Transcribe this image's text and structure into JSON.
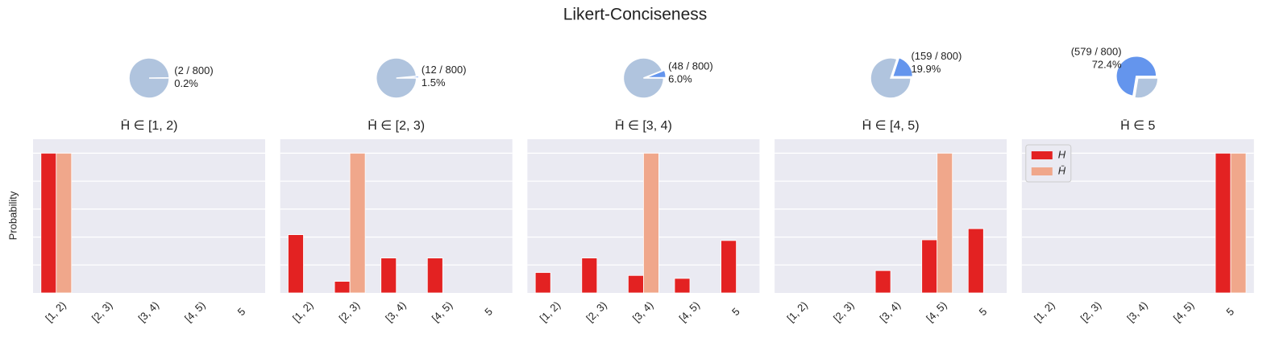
{
  "title": "Likert-Conciseness",
  "chart_data": [
    {
      "type": "pie",
      "label": "(2 / 800)",
      "values": [
        0.2,
        99.8
      ],
      "value_labels": [
        "0.2%",
        null
      ],
      "colors": [
        "#6495ed",
        "#b0c4de"
      ]
    },
    {
      "type": "bar",
      "title": "H̄ ∈ [1, 2)",
      "ylabel": "Probability",
      "categories": [
        "[1, 2)",
        "[2, 3)",
        "[3, 4)",
        "[4, 5)",
        "5"
      ],
      "series": [
        {
          "color": "#e32222",
          "values": [
            1.0,
            0,
            0,
            0,
            0
          ]
        },
        {
          "color": "#f0a78b",
          "values": [
            1.0,
            0,
            0,
            0,
            0
          ]
        }
      ],
      "ylim": [
        0,
        1.1
      ],
      "yticks": [
        0.2,
        0.4,
        0.6,
        0.8,
        1.0
      ],
      "grid": true
    },
    {
      "type": "pie",
      "label": "(12 / 800)",
      "values": [
        1.5,
        98.5
      ],
      "value_labels": [
        "1.5%",
        null
      ],
      "colors": [
        "#6495ed",
        "#b0c4de"
      ]
    },
    {
      "type": "bar",
      "title": "H̄ ∈ [2, 3)",
      "categories": [
        "[1, 2)",
        "[2, 3)",
        "[3, 4)",
        "[4, 5)",
        "5"
      ],
      "series": [
        {
          "color": "#e32222",
          "values": [
            0.417,
            0.083,
            0.25,
            0.25,
            0
          ]
        },
        {
          "color": "#f0a78b",
          "values": [
            0,
            1.0,
            0,
            0,
            0
          ]
        }
      ],
      "ylim": [
        0,
        1.1
      ],
      "yticks": [
        0.2,
        0.4,
        0.6,
        0.8,
        1.0
      ],
      "grid": true
    },
    {
      "type": "pie",
      "label": "(48 / 800)",
      "values": [
        6.0,
        94.0
      ],
      "value_labels": [
        "6.0%",
        null
      ],
      "colors": [
        "#6495ed",
        "#b0c4de"
      ]
    },
    {
      "type": "bar",
      "title": "H̄ ∈ [3, 4)",
      "categories": [
        "[1, 2)",
        "[2, 3)",
        "[3, 4)",
        "[4, 5)",
        "5"
      ],
      "series": [
        {
          "color": "#e32222",
          "values": [
            0.146,
            0.25,
            0.125,
            0.104,
            0.375
          ]
        },
        {
          "color": "#f0a78b",
          "values": [
            0,
            0,
            1.0,
            0,
            0
          ]
        }
      ],
      "ylim": [
        0,
        1.1
      ],
      "yticks": [
        0.2,
        0.4,
        0.6,
        0.8,
        1.0
      ],
      "grid": true
    },
    {
      "type": "pie",
      "label": "(159 / 800)",
      "values": [
        19.9,
        80.1
      ],
      "value_labels": [
        "19.9%",
        null
      ],
      "colors": [
        "#6495ed",
        "#b0c4de"
      ]
    },
    {
      "type": "bar",
      "title": "H̄ ∈ [4, 5)",
      "categories": [
        "[1, 2)",
        "[2, 3)",
        "[3, 4)",
        "[4, 5)",
        "5"
      ],
      "series": [
        {
          "color": "#e32222",
          "values": [
            0,
            0,
            0.16,
            0.38,
            0.46
          ]
        },
        {
          "color": "#f0a78b",
          "values": [
            0,
            0,
            0,
            1.0,
            0
          ]
        }
      ],
      "ylim": [
        0,
        1.1
      ],
      "yticks": [
        0.2,
        0.4,
        0.6,
        0.8,
        1.0
      ],
      "grid": true
    },
    {
      "type": "pie",
      "label": "(579 / 800)",
      "values": [
        72.4,
        27.6
      ],
      "value_labels": [
        "72.4%",
        null
      ],
      "colors": [
        "#6495ed",
        "#b0c4de"
      ]
    },
    {
      "type": "bar",
      "title": "H̄ ∈ 5",
      "categories": [
        "[1, 2)",
        "[2, 3)",
        "[3, 4)",
        "[4, 5)",
        "5"
      ],
      "series": [
        {
          "name": "H",
          "color": "#e32222",
          "values": [
            0,
            0,
            0,
            0,
            1.0
          ]
        },
        {
          "name": "H̄",
          "color": "#f0a78b",
          "values": [
            0,
            0,
            0,
            0,
            1.0
          ]
        }
      ],
      "ylim": [
        0,
        1.1
      ],
      "yticks": [
        0.2,
        0.4,
        0.6,
        0.8,
        1.0
      ],
      "grid": true,
      "legend": "upper left"
    }
  ]
}
